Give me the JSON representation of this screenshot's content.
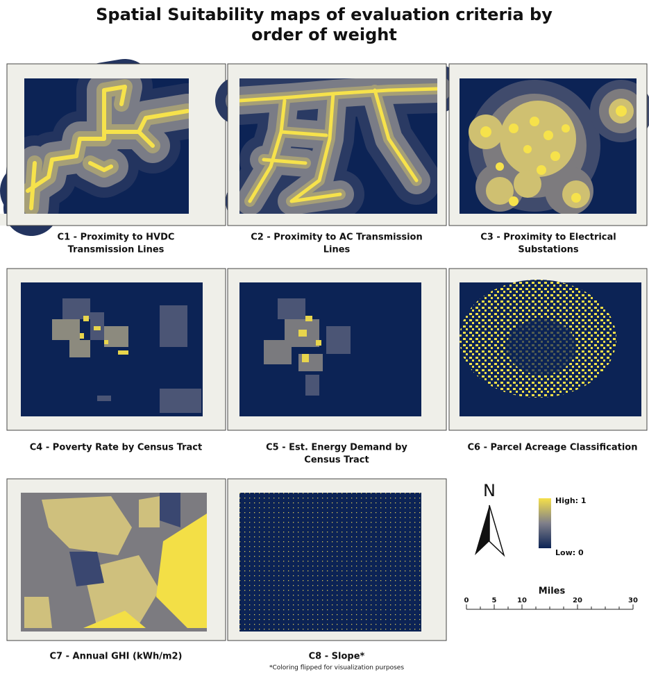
{
  "header": {
    "title": [
      "Spatial Suitability maps of evaluation criteria by",
      "order of weight"
    ]
  },
  "panels": [
    {
      "caption": [
        "C1 - Proximity to HVDC",
        "Transmission Lines"
      ]
    },
    {
      "caption": [
        "C2 - Proximity to AC Transmission",
        "Lines"
      ]
    },
    {
      "caption": [
        "C3 - Proximity to Electrical",
        "Substations"
      ]
    },
    {
      "caption": [
        "C4 - Poverty Rate by Census Tract"
      ]
    },
    {
      "caption": [
        "C5 - Est. Energy Demand by",
        "Census Tract"
      ]
    },
    {
      "caption": [
        "C6 - Parcel Acreage Classification"
      ]
    },
    {
      "caption": [
        "C7 - Annual GHI (kWh/m2)"
      ]
    },
    {
      "caption": [
        "C8 - Slope*"
      ],
      "footnote": "*Coloring flipped for visualization purposes"
    }
  ],
  "legend": {
    "high": "High: 1",
    "low": "Low: 0"
  },
  "north": "N",
  "scale": {
    "title": "Miles",
    "ticks": [
      0,
      5,
      10,
      20,
      30
    ]
  }
}
